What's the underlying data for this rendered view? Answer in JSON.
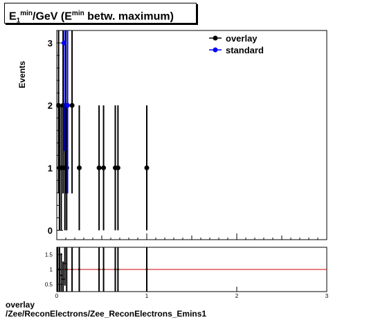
{
  "title": {
    "main": "E",
    "sub": "1",
    "sup": "min",
    "rest": "/GeV (E",
    "sup2": "min",
    "tail": "betw. maximum)"
  },
  "footer": {
    "line1": "overlay",
    "line2": "/Zee/ReconElectrons/Zee_ReconElectrons_Emins1"
  },
  "colors": {
    "overlay": "#000000",
    "standard": "#0000ff",
    "ratio_line": "#cc0000"
  },
  "chart_data": [
    {
      "type": "scatter",
      "ylabel": "Events",
      "xlim": [
        0,
        3
      ],
      "ylim": [
        -0.15,
        3.2
      ],
      "yticks": [
        0,
        1,
        2,
        3
      ],
      "legend_position": "top-right",
      "series": [
        {
          "name": "overlay",
          "points": [
            {
              "x": 0.02,
              "y": 2,
              "err": 1.41
            },
            {
              "x": 0.07,
              "y": 2,
              "err": 1.41
            },
            {
              "x": 0.1,
              "y": 2,
              "err": 1.41
            },
            {
              "x": 0.03,
              "y": 1,
              "err": 1.0
            },
            {
              "x": 0.05,
              "y": 1,
              "err": 1.0
            },
            {
              "x": 0.09,
              "y": 1,
              "err": 1.0
            },
            {
              "x": 0.11,
              "y": 1,
              "err": 1.0
            },
            {
              "x": 0.17,
              "y": 2,
              "err": 1.41
            },
            {
              "x": 0.25,
              "y": 1,
              "err": 1.0
            },
            {
              "x": 0.47,
              "y": 1,
              "err": 1.0
            },
            {
              "x": 0.52,
              "y": 1,
              "err": 1.0
            },
            {
              "x": 0.65,
              "y": 1,
              "err": 1.0
            },
            {
              "x": 0.68,
              "y": 1,
              "err": 1.0
            },
            {
              "x": 1.0,
              "y": 1,
              "err": 1.0
            }
          ]
        },
        {
          "name": "standard",
          "points": [
            {
              "x": 0.08,
              "y": 3,
              "err": 1.73
            },
            {
              "x": 0.12,
              "y": 2,
              "err": 1.41
            }
          ]
        }
      ]
    },
    {
      "type": "scatter",
      "xlim": [
        0,
        3
      ],
      "ylim": [
        0.25,
        1.75
      ],
      "yticks": [
        0.5,
        1,
        1.5
      ],
      "yticklabels": [
        "0.5",
        "1",
        "1.5"
      ],
      "xticks": [
        0,
        1,
        2,
        3
      ],
      "xticklabels": [
        "0",
        "1",
        "2",
        "3"
      ],
      "reference_line": 1,
      "points": [
        {
          "x": 0.01,
          "y": 1,
          "err": 0.75
        },
        {
          "x": 0.03,
          "y": 1.0,
          "err": 0.75
        },
        {
          "x": 0.05,
          "y": 0.8,
          "err": 0.75
        },
        {
          "x": 0.07,
          "y": 0.67,
          "err": 0.6
        },
        {
          "x": 0.09,
          "y": 1.2,
          "err": 0.75
        },
        {
          "x": 0.11,
          "y": 1.0,
          "err": 0.75
        },
        {
          "x": 0.17,
          "y": 1.0,
          "err": 0.75
        },
        {
          "x": 0.25,
          "y": 1.0,
          "err": 0.75
        },
        {
          "x": 0.47,
          "y": 1.0,
          "err": 0.75
        },
        {
          "x": 0.52,
          "y": 1.0,
          "err": 0.75
        },
        {
          "x": 0.65,
          "y": 1.0,
          "err": 0.75
        },
        {
          "x": 0.68,
          "y": 1.0,
          "err": 0.75
        },
        {
          "x": 1.0,
          "y": 1.0,
          "err": 0.75
        }
      ]
    }
  ]
}
